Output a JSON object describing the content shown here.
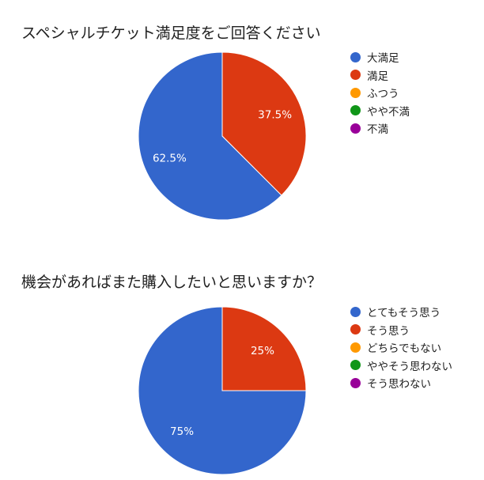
{
  "chart_data": [
    {
      "type": "pie",
      "title": "スペシャルチケット満足度をご回答ください",
      "categories": [
        "大満足",
        "満足",
        "ふつう",
        "やや不満",
        "不満"
      ],
      "values": [
        62.5,
        37.5,
        0,
        0,
        0
      ],
      "value_labels": [
        "62.5%",
        "37.5%",
        "",
        "",
        ""
      ],
      "colors": [
        "#3366cc",
        "#dc3912",
        "#ff9900",
        "#109618",
        "#990099"
      ],
      "legend": "right"
    },
    {
      "type": "pie",
      "title": "機会があればまた購入したいと思いますか？",
      "categories": [
        "とてもそう思う",
        "そう思う",
        "どちらでもない",
        "ややそう思わない",
        "そう思わない"
      ],
      "values": [
        75,
        25,
        0,
        0,
        0
      ],
      "value_labels": [
        "75%",
        "25%",
        "",
        "",
        ""
      ],
      "colors": [
        "#3366cc",
        "#dc3912",
        "#ff9900",
        "#109618",
        "#990099"
      ],
      "legend": "right"
    }
  ]
}
